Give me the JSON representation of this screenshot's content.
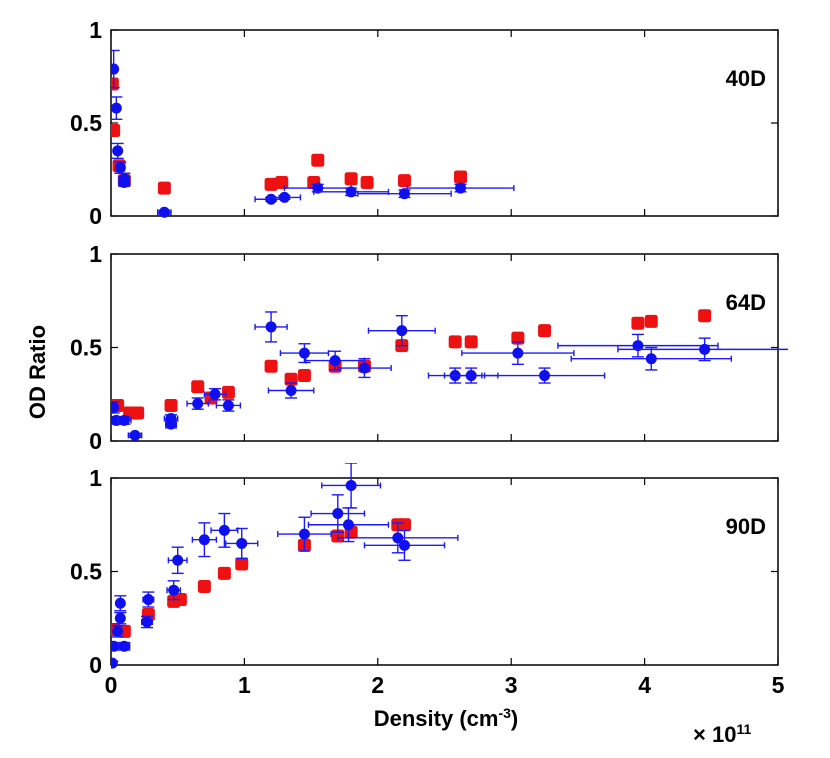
{
  "chart_data": {
    "type": "scatter",
    "xlabel_main": "Density (cm",
    "xlabel_sup": "-3",
    "xlabel_tail": ")",
    "ylabel": "OD Ratio",
    "exponent_label": "× 10",
    "exponent_sup": "11",
    "xlim": [
      0,
      5
    ],
    "ylim": [
      0,
      1
    ],
    "x_ticks": [
      "0",
      "1",
      "2",
      "3",
      "4",
      "5"
    ],
    "y_ticks": [
      "0",
      "0.5",
      "1"
    ],
    "colors": {
      "series_a": "#ee1111",
      "series_b": "#1010ee"
    },
    "panels": [
      {
        "label": "40D",
        "red": [
          [
            0.01,
            0.71
          ],
          [
            0.02,
            0.46
          ],
          [
            0.06,
            0.27
          ],
          [
            0.1,
            0.19
          ],
          [
            0.4,
            0.15
          ],
          [
            1.2,
            0.17
          ],
          [
            1.28,
            0.18
          ],
          [
            1.52,
            0.18
          ],
          [
            1.55,
            0.3
          ],
          [
            1.8,
            0.2
          ],
          [
            1.92,
            0.18
          ],
          [
            2.2,
            0.19
          ],
          [
            2.62,
            0.21
          ]
        ],
        "blue": [
          {
            "x": 0.02,
            "y": 0.79,
            "xerr": 0.01,
            "yerr": 0.1
          },
          {
            "x": 0.04,
            "y": 0.58,
            "xerr": 0.01,
            "yerr": 0.06
          },
          {
            "x": 0.05,
            "y": 0.35,
            "xerr": 0.02,
            "yerr": 0.04
          },
          {
            "x": 0.07,
            "y": 0.26,
            "xerr": 0.02,
            "yerr": 0.03
          },
          {
            "x": 0.1,
            "y": 0.2,
            "xerr": 0.04,
            "yerr": 0.03
          },
          {
            "x": 0.1,
            "y": 0.18,
            "xerr": 0.04,
            "yerr": 0.02
          },
          {
            "x": 0.4,
            "y": 0.02,
            "xerr": 0.05,
            "yerr": 0.01
          },
          {
            "x": 1.2,
            "y": 0.09,
            "xerr": 0.12,
            "yerr": 0.01
          },
          {
            "x": 1.3,
            "y": 0.1,
            "xerr": 0.12,
            "yerr": 0.01
          },
          {
            "x": 1.55,
            "y": 0.15,
            "xerr": 0.25,
            "yerr": 0.02
          },
          {
            "x": 1.8,
            "y": 0.13,
            "xerr": 0.28,
            "yerr": 0.02
          },
          {
            "x": 2.2,
            "y": 0.12,
            "xerr": 0.35,
            "yerr": 0.02
          },
          {
            "x": 2.62,
            "y": 0.15,
            "xerr": 0.4,
            "yerr": 0.02
          }
        ]
      },
      {
        "label": "64D",
        "red": [
          [
            0.02,
            0.19
          ],
          [
            0.05,
            0.19
          ],
          [
            0.14,
            0.15
          ],
          [
            0.2,
            0.15
          ],
          [
            0.45,
            0.19
          ],
          [
            0.65,
            0.29
          ],
          [
            0.75,
            0.23
          ],
          [
            0.88,
            0.26
          ],
          [
            1.2,
            0.4
          ],
          [
            1.35,
            0.33
          ],
          [
            1.45,
            0.35
          ],
          [
            1.68,
            0.4
          ],
          [
            1.9,
            0.4
          ],
          [
            2.18,
            0.51
          ],
          [
            2.58,
            0.53
          ],
          [
            2.7,
            0.53
          ],
          [
            3.05,
            0.55
          ],
          [
            3.25,
            0.59
          ],
          [
            3.95,
            0.63
          ],
          [
            4.05,
            0.64
          ],
          [
            4.45,
            0.67
          ]
        ],
        "blue": [
          {
            "x": 0.02,
            "y": 0.18,
            "xerr": 0.02,
            "yerr": 0.03
          },
          {
            "x": 0.04,
            "y": 0.11,
            "xerr": 0.03,
            "yerr": 0.02
          },
          {
            "x": 0.1,
            "y": 0.11,
            "xerr": 0.05,
            "yerr": 0.02
          },
          {
            "x": 0.18,
            "y": 0.03,
            "xerr": 0.05,
            "yerr": 0.01
          },
          {
            "x": 0.45,
            "y": 0.09,
            "xerr": 0.04,
            "yerr": 0.02
          },
          {
            "x": 0.45,
            "y": 0.12,
            "xerr": 0.05,
            "yerr": 0.02
          },
          {
            "x": 0.65,
            "y": 0.2,
            "xerr": 0.08,
            "yerr": 0.03
          },
          {
            "x": 0.78,
            "y": 0.25,
            "xerr": 0.08,
            "yerr": 0.03
          },
          {
            "x": 0.88,
            "y": 0.19,
            "xerr": 0.09,
            "yerr": 0.03
          },
          {
            "x": 1.2,
            "y": 0.61,
            "xerr": 0.12,
            "yerr": 0.08
          },
          {
            "x": 1.35,
            "y": 0.27,
            "xerr": 0.17,
            "yerr": 0.04
          },
          {
            "x": 1.45,
            "y": 0.47,
            "xerr": 0.18,
            "yerr": 0.05
          },
          {
            "x": 1.68,
            "y": 0.43,
            "xerr": 0.22,
            "yerr": 0.05
          },
          {
            "x": 1.9,
            "y": 0.39,
            "xerr": 0.2,
            "yerr": 0.05
          },
          {
            "x": 2.18,
            "y": 0.59,
            "xerr": 0.25,
            "yerr": 0.08
          },
          {
            "x": 2.58,
            "y": 0.35,
            "xerr": 0.2,
            "yerr": 0.04
          },
          {
            "x": 2.7,
            "y": 0.35,
            "xerr": 0.2,
            "yerr": 0.04
          },
          {
            "x": 3.05,
            "y": 0.47,
            "xerr": 0.42,
            "yerr": 0.06
          },
          {
            "x": 3.25,
            "y": 0.35,
            "xerr": 0.45,
            "yerr": 0.04
          },
          {
            "x": 3.95,
            "y": 0.51,
            "xerr": 0.6,
            "yerr": 0.06
          },
          {
            "x": 4.05,
            "y": 0.44,
            "xerr": 0.6,
            "yerr": 0.06
          },
          {
            "x": 4.45,
            "y": 0.49,
            "xerr": 0.65,
            "yerr": 0.06
          }
        ]
      },
      {
        "label": "90D",
        "red": [
          [
            0.02,
            0.19
          ],
          [
            0.1,
            0.18
          ],
          [
            0.28,
            0.27
          ],
          [
            0.47,
            0.34
          ],
          [
            0.52,
            0.35
          ],
          [
            0.7,
            0.42
          ],
          [
            0.85,
            0.49
          ],
          [
            0.98,
            0.54
          ],
          [
            1.45,
            0.64
          ],
          [
            1.7,
            0.69
          ],
          [
            1.8,
            0.71
          ],
          [
            2.15,
            0.75
          ],
          [
            2.2,
            0.75
          ]
        ],
        "blue": [
          {
            "x": 0.01,
            "y": 0.01,
            "xerr": 0.01,
            "yerr": 0.01
          },
          {
            "x": 0.02,
            "y": 0.1,
            "xerr": 0.01,
            "yerr": 0.02
          },
          {
            "x": 0.05,
            "y": 0.18,
            "xerr": 0.02,
            "yerr": 0.03
          },
          {
            "x": 0.07,
            "y": 0.25,
            "xerr": 0.02,
            "yerr": 0.03
          },
          {
            "x": 0.07,
            "y": 0.33,
            "xerr": 0.02,
            "yerr": 0.04
          },
          {
            "x": 0.1,
            "y": 0.1,
            "xerr": 0.04,
            "yerr": 0.02
          },
          {
            "x": 0.27,
            "y": 0.23,
            "xerr": 0.04,
            "yerr": 0.03
          },
          {
            "x": 0.28,
            "y": 0.35,
            "xerr": 0.04,
            "yerr": 0.04
          },
          {
            "x": 0.47,
            "y": 0.4,
            "xerr": 0.05,
            "yerr": 0.05
          },
          {
            "x": 0.5,
            "y": 0.56,
            "xerr": 0.07,
            "yerr": 0.07
          },
          {
            "x": 0.7,
            "y": 0.67,
            "xerr": 0.09,
            "yerr": 0.09
          },
          {
            "x": 0.85,
            "y": 0.72,
            "xerr": 0.1,
            "yerr": 0.09
          },
          {
            "x": 0.98,
            "y": 0.65,
            "xerr": 0.12,
            "yerr": 0.08
          },
          {
            "x": 1.45,
            "y": 0.7,
            "xerr": 0.2,
            "yerr": 0.09
          },
          {
            "x": 1.7,
            "y": 0.81,
            "xerr": 0.2,
            "yerr": 0.1
          },
          {
            "x": 1.8,
            "y": 0.96,
            "xerr": 0.22,
            "yerr": 0.12
          },
          {
            "x": 1.78,
            "y": 0.75,
            "xerr": 0.3,
            "yerr": 0.09
          },
          {
            "x": 2.15,
            "y": 0.68,
            "xerr": 0.45,
            "yerr": 0.08
          },
          {
            "x": 2.2,
            "y": 0.64,
            "xerr": 0.3,
            "yerr": 0.08
          }
        ]
      }
    ]
  }
}
